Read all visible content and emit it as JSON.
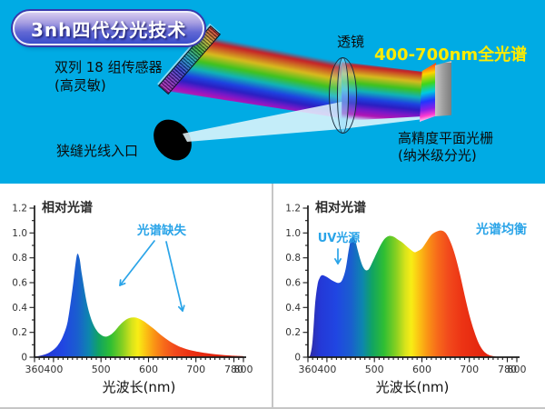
{
  "colors": {
    "top_background": "#00ABE4",
    "highlight": "#FFEB00",
    "annotation": "#2AA4E8",
    "divider": "#C6C6C6",
    "badge_text": "#FFFFFF"
  },
  "badge": {
    "label": "3nh四代分光技术"
  },
  "diagram": {
    "sensor_label": {
      "line1": "双列 18 组传感器",
      "line2": "(高灵敏)"
    },
    "lens_label": "透镜",
    "full_spectrum_label": "400-700nm全光谱",
    "grating_label": {
      "line1": "高精度平面光栅",
      "line2": "(纳米级分光)"
    },
    "slit_label": "狭缝光线入口"
  },
  "spectral_gradient": [
    [
      360,
      "#312A9B"
    ],
    [
      385,
      "#2438D6"
    ],
    [
      420,
      "#2046E2"
    ],
    [
      450,
      "#1A5ECF"
    ],
    [
      475,
      "#0D86AE"
    ],
    [
      495,
      "#11A363"
    ],
    [
      520,
      "#2FBE33"
    ],
    [
      545,
      "#84CF22"
    ],
    [
      565,
      "#D8E31B"
    ],
    [
      578,
      "#F8ED15"
    ],
    [
      595,
      "#FBC013"
    ],
    [
      612,
      "#FA9415"
    ],
    [
      632,
      "#F76B1A"
    ],
    [
      655,
      "#F24B1C"
    ],
    [
      685,
      "#EC3314"
    ],
    [
      730,
      "#E3250E"
    ],
    [
      800,
      "#DA1E0A"
    ]
  ],
  "chart_data": [
    {
      "name": "led-spectrum-chart",
      "type": "area",
      "title": "相对光谱",
      "xlabel": "光波长(nm)",
      "xlim": [
        360,
        800
      ],
      "ylim": [
        0,
        1.2
      ],
      "x_major_ticks": [
        360,
        400,
        500,
        600,
        700,
        780,
        800
      ],
      "y_major_ticks": [
        0,
        0.2,
        0.4,
        0.6,
        0.8,
        1.0,
        1.2
      ],
      "annotations": [
        "光谱缺失"
      ],
      "x": [
        360,
        370,
        380,
        390,
        400,
        410,
        420,
        430,
        440,
        445,
        450,
        455,
        460,
        470,
        480,
        490,
        500,
        510,
        520,
        530,
        540,
        550,
        560,
        570,
        580,
        590,
        600,
        610,
        620,
        630,
        640,
        650,
        660,
        670,
        680,
        690,
        700,
        720,
        740,
        760,
        780,
        800
      ],
      "y": [
        0.005,
        0.01,
        0.02,
        0.035,
        0.06,
        0.1,
        0.17,
        0.29,
        0.55,
        0.71,
        0.83,
        0.79,
        0.66,
        0.44,
        0.3,
        0.22,
        0.18,
        0.165,
        0.18,
        0.215,
        0.26,
        0.295,
        0.315,
        0.32,
        0.31,
        0.29,
        0.262,
        0.232,
        0.2,
        0.168,
        0.14,
        0.115,
        0.095,
        0.078,
        0.065,
        0.055,
        0.047,
        0.034,
        0.024,
        0.017,
        0.012,
        0.008
      ]
    },
    {
      "name": "full-spectrum-chart",
      "type": "area",
      "title": "相对光谱",
      "xlabel": "光波长(nm)",
      "xlim": [
        360,
        800
      ],
      "ylim": [
        0,
        1.2
      ],
      "x_major_ticks": [
        360,
        400,
        500,
        600,
        700,
        780,
        800
      ],
      "y_major_ticks": [
        0,
        0.2,
        0.4,
        0.6,
        0.8,
        1.0,
        1.2
      ],
      "annotations": [
        "UV光源",
        "光谱均衡"
      ],
      "x": [
        360,
        365,
        370,
        375,
        380,
        385,
        390,
        395,
        400,
        410,
        420,
        425,
        430,
        435,
        440,
        445,
        450,
        455,
        460,
        465,
        470,
        475,
        480,
        485,
        490,
        500,
        510,
        520,
        530,
        540,
        550,
        560,
        570,
        580,
        585,
        590,
        600,
        610,
        620,
        630,
        640,
        650,
        660,
        670,
        680,
        690,
        700,
        710,
        720,
        730,
        740,
        750,
        760
      ],
      "y": [
        0,
        0.02,
        0.14,
        0.42,
        0.58,
        0.64,
        0.66,
        0.655,
        0.645,
        0.62,
        0.601,
        0.598,
        0.608,
        0.648,
        0.72,
        0.84,
        0.94,
        0.97,
        0.935,
        0.86,
        0.79,
        0.735,
        0.705,
        0.7,
        0.72,
        0.8,
        0.88,
        0.945,
        0.975,
        0.97,
        0.945,
        0.92,
        0.885,
        0.855,
        0.845,
        0.852,
        0.875,
        0.93,
        0.985,
        1.01,
        1.02,
        1.0,
        0.93,
        0.82,
        0.67,
        0.5,
        0.34,
        0.21,
        0.11,
        0.05,
        0.02,
        0.008,
        0.002
      ]
    }
  ]
}
